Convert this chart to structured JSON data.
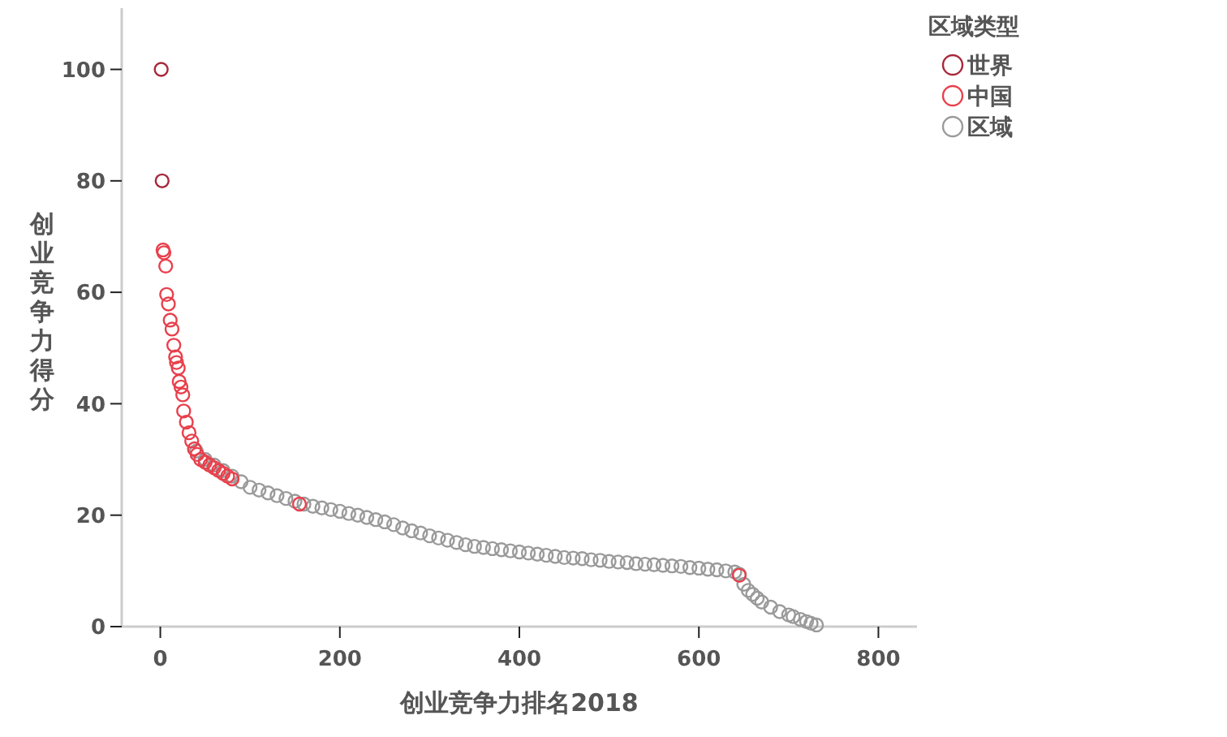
{
  "chart_data": {
    "type": "scatter",
    "xlabel": "创业竞争力排名2018",
    "ylabel": "创业竞争力得分",
    "legend_title": "区域类型",
    "legend": "top right",
    "marker": "circle",
    "grid": false,
    "xlim": [
      -43,
      843
    ],
    "xticks": [
      0,
      200,
      400,
      600,
      800
    ],
    "ylim": [
      0,
      111
    ],
    "yticks": [
      0,
      20,
      40,
      60,
      80,
      100
    ],
    "series": [
      {
        "name": "世界",
        "color": "#a8283c",
        "x": [
          1,
          2
        ],
        "values": [
          100,
          80
        ]
      },
      {
        "name": "中国",
        "color": "#e8404c",
        "x": [
          3,
          4,
          6,
          7,
          9,
          11,
          13,
          15,
          17,
          18,
          20,
          21,
          23,
          25,
          26,
          29,
          32,
          35,
          38,
          41,
          45,
          50,
          55,
          60,
          65,
          70,
          75,
          80,
          155,
          645
        ],
        "values": [
          67.6,
          67.1,
          64.7,
          59.6,
          57.9,
          55,
          53.4,
          50.5,
          48.4,
          47.4,
          46.4,
          44,
          43,
          41.6,
          38.7,
          36.7,
          34.8,
          33.3,
          31.9,
          30.9,
          30,
          29.5,
          29,
          28.5,
          28,
          27.5,
          27,
          26.5,
          22,
          9.2
        ]
      },
      {
        "name": "区域",
        "color": "#9a9a9a",
        "x": [
          40,
          50,
          60,
          70,
          80,
          90,
          100,
          110,
          120,
          130,
          140,
          150,
          160,
          170,
          180,
          190,
          200,
          210,
          220,
          230,
          240,
          250,
          260,
          270,
          280,
          290,
          300,
          310,
          320,
          330,
          340,
          350,
          360,
          370,
          380,
          390,
          400,
          410,
          420,
          430,
          440,
          450,
          460,
          470,
          480,
          490,
          500,
          510,
          520,
          530,
          540,
          550,
          560,
          570,
          580,
          590,
          600,
          610,
          620,
          630,
          640,
          645,
          650,
          655,
          660,
          665,
          670,
          680,
          690,
          700,
          705,
          713,
          720,
          725,
          731
        ],
        "values": [
          31.5,
          30,
          29,
          28,
          27,
          26,
          25,
          24.5,
          24,
          23.5,
          23,
          22.5,
          22,
          21.6,
          21.3,
          21,
          20.7,
          20.3,
          20,
          19.6,
          19.2,
          18.8,
          18.3,
          17.7,
          17.2,
          16.8,
          16.3,
          15.9,
          15.5,
          15.1,
          14.7,
          14.4,
          14.2,
          14,
          13.8,
          13.6,
          13.4,
          13.2,
          13,
          12.8,
          12.6,
          12.4,
          12.3,
          12.2,
          12,
          11.9,
          11.7,
          11.6,
          11.5,
          11.3,
          11.2,
          11.1,
          11,
          10.9,
          10.8,
          10.6,
          10.5,
          10.3,
          10.2,
          10,
          9.8,
          9.4,
          7.6,
          6.5,
          5.8,
          5.1,
          4.4,
          3.5,
          2.7,
          2.1,
          1.8,
          1.3,
          0.9,
          0.6,
          0.3
        ]
      }
    ]
  }
}
